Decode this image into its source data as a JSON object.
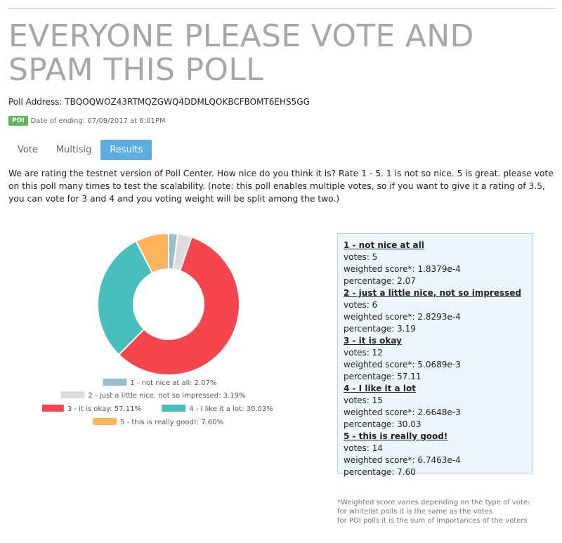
{
  "poll": {
    "title": "EVERYONE PLEASE VOTE AND SPAM THIS POLL",
    "address_label": "Poll Address: ",
    "address": "TBQOQWOZ43RTMQZGWQ4DDMLQOKBCFBOMT6EHS5GG",
    "badge": "POI",
    "end_date": "Date of ending: 07/09/2017 at 6:01PM",
    "description": "We are rating the testnet version of Poll Center. How nice do you think it is? Rate 1 - 5. 1 is not so nice. 5 is great. please vote on this poll many times to test the scalability. (note: this poll enables multiple votes, so if you want to give it a rating of 3.5, you can vote for 3 and 4 and you voting weight will be split among the two.)"
  },
  "tabs": [
    {
      "label": "Vote",
      "active": false
    },
    {
      "label": "Multisig",
      "active": false
    },
    {
      "label": "Results",
      "active": true
    }
  ],
  "chart_data": {
    "type": "pie",
    "donut": true,
    "categories": [
      "1 - not nice at all",
      "2 - just a little nice, not so impressed",
      "3 - it is okay",
      "4 - I like it a lot",
      "5 - this is really good!"
    ],
    "values": [
      2.07,
      3.19,
      57.11,
      30.03,
      7.6
    ],
    "colors": [
      "#9bbccb",
      "#dcdcdc",
      "#f4464c",
      "#46bfbd",
      "#fdb45c"
    ],
    "legend": [
      "1 - not nice at all: 2.07%",
      "2 - just a little nice, not so impressed: 3.19%",
      "3 - it is okay: 57.11%",
      "4 - I like it a lot: 30.03%",
      "5 - this is really good!: 7.60%"
    ]
  },
  "results": [
    {
      "title": "1 - not nice at all",
      "votes": "votes: 5",
      "weighted": "weighted score*: 1.8379e-4",
      "percentage": "percentage: 2.07"
    },
    {
      "title": "2 - just a little nice, not so impressed",
      "votes": "votes: 6",
      "weighted": "weighted score*: 2.8293e-4",
      "percentage": "percentage: 3.19"
    },
    {
      "title": "3 - it is okay",
      "votes": "votes: 12",
      "weighted": "weighted score*: 5.0689e-3",
      "percentage": "percentage: 57.11"
    },
    {
      "title": "4 - I like it a lot",
      "votes": "votes: 15",
      "weighted": "weighted score*: 2.6648e-3",
      "percentage": "percentage: 30.03"
    },
    {
      "title": "5 - this is really good!",
      "votes": "votes: 14",
      "weighted": "weighted score*: 6.7463e-4",
      "percentage": "percentage: 7.60"
    }
  ],
  "footnote": [
    "*Weighted score varies depending on the type of vote:",
    "for whitelist polls it is the same as the votes",
    "for POI polls it is the sum of importances of the voters"
  ]
}
